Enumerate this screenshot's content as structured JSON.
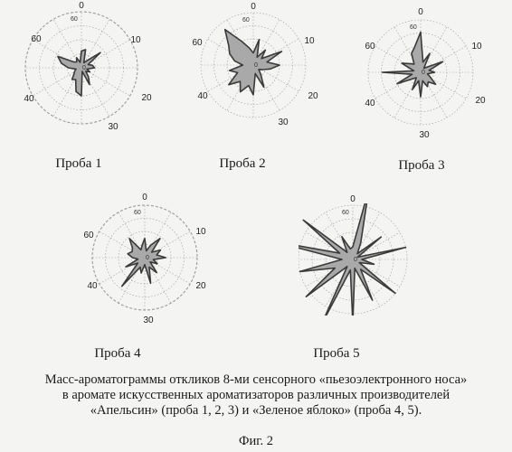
{
  "chart_data": [
    {
      "type": "radar",
      "title": "Проба 1",
      "angle_ticks": [
        "0",
        "10",
        "20",
        "30",
        "40",
        "60"
      ],
      "radial_ticks": [
        "60"
      ],
      "rlim": [
        0,
        60
      ],
      "values": [
        18,
        20,
        6,
        10,
        26,
        8,
        12,
        14,
        6,
        10,
        6,
        12,
        20,
        4,
        30,
        26,
        14,
        16,
        10,
        8,
        6,
        14,
        22,
        28,
        10,
        8,
        12,
        6
      ]
    },
    {
      "type": "radar",
      "title": "Проба 2",
      "angle_ticks": [
        "0",
        "10",
        "20",
        "30",
        "40",
        "60"
      ],
      "radial_ticks": [
        "60"
      ],
      "rlim": [
        0,
        60
      ],
      "values": [
        14,
        30,
        10,
        22,
        12,
        36,
        16,
        30,
        20,
        12,
        8,
        14,
        28,
        10,
        34,
        24,
        34,
        24,
        36,
        20,
        28,
        12,
        22,
        30,
        36,
        52,
        30,
        20
      ]
    },
    {
      "type": "radar",
      "title": "Проба 3",
      "angle_ticks": [
        "0",
        "10",
        "20",
        "30",
        "40",
        "60"
      ],
      "radial_ticks": [
        "60"
      ],
      "rlim": [
        0,
        60
      ],
      "values": [
        46,
        12,
        24,
        6,
        10,
        28,
        10,
        16,
        8,
        12,
        22,
        14,
        18,
        10,
        28,
        10,
        22,
        8,
        12,
        30,
        10,
        44,
        8,
        24,
        16,
        12,
        24,
        30
      ]
    },
    {
      "type": "radar",
      "title": "Проба 4",
      "angle_ticks": [
        "0",
        "10",
        "20",
        "30",
        "40",
        "60"
      ],
      "radial_ticks": [
        "60"
      ],
      "rlim": [
        0,
        60
      ],
      "values": [
        22,
        8,
        16,
        28,
        10,
        20,
        14,
        24,
        10,
        16,
        8,
        22,
        12,
        30,
        8,
        18,
        12,
        42,
        10,
        24,
        8,
        14,
        20,
        16,
        18,
        28,
        10,
        14
      ]
    },
    {
      "type": "radar",
      "title": "Проба 5",
      "angle_ticks": [
        "0"
      ],
      "radial_ticks": [
        "60"
      ],
      "rlim": [
        0,
        60
      ],
      "values": [
        14,
        80,
        20,
        8,
        40,
        6,
        60,
        10,
        24,
        8,
        60,
        14,
        50,
        10,
        70,
        12,
        80,
        10,
        66,
        22,
        60,
        12,
        90,
        16,
        70,
        10,
        28,
        12
      ]
    }
  ],
  "plot_labels": [
    "Проба 1",
    "Проба 2",
    "Проба 3",
    "Проба 4",
    "Проба 5"
  ],
  "caption": {
    "line1": "Масс-ароматограммы откликов 8-ми сенсорного «пьезоэлектронного носа»",
    "line2": "в аромате искусственных ароматизаторов различных производителей",
    "line3": "«Апельсин» (проба 1, 2, 3) и «Зеленое яблоко» (проба 4, 5)."
  },
  "figure_label": "Фиг. 2",
  "colors": {
    "fill": "#a9a9a9",
    "stroke": "#3a3a3a",
    "grid": "#9a9a9a"
  }
}
